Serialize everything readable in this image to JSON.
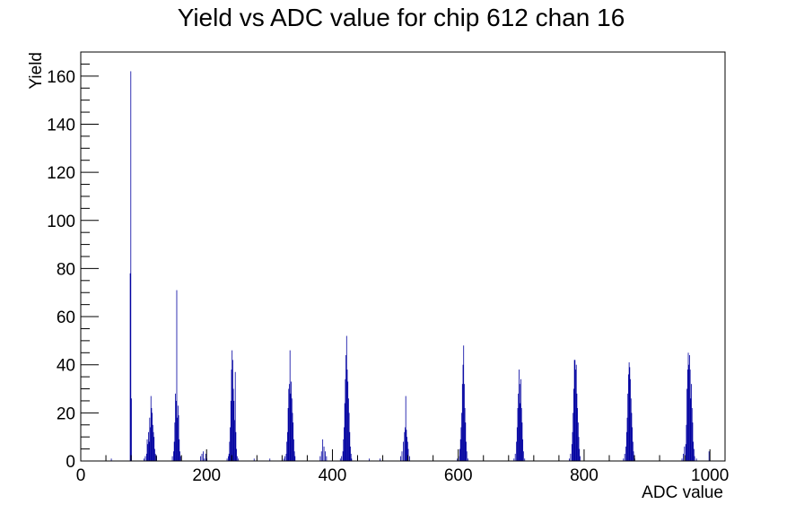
{
  "chart_data": {
    "type": "bar",
    "title": "Yield vs ADC value for chip 612 chan 16",
    "xlabel": "ADC value",
    "ylabel": "Yield",
    "xlim": [
      0,
      1024
    ],
    "ylim": [
      0,
      170
    ],
    "xticks": [
      0,
      200,
      400,
      600,
      800,
      1000
    ],
    "yticks": [
      0,
      20,
      40,
      60,
      80,
      100,
      120,
      140,
      160
    ],
    "grid": false,
    "color": "#0000a0",
    "bin_width": 1,
    "points": [
      [
        48,
        1
      ],
      [
        78,
        78
      ],
      [
        79,
        162
      ],
      [
        80,
        26
      ],
      [
        100,
        1
      ],
      [
        102,
        2
      ],
      [
        104,
        3
      ],
      [
        105,
        9
      ],
      [
        106,
        7
      ],
      [
        107,
        12
      ],
      [
        108,
        8
      ],
      [
        109,
        18
      ],
      [
        110,
        14
      ],
      [
        111,
        27
      ],
      [
        112,
        22
      ],
      [
        113,
        20
      ],
      [
        114,
        15
      ],
      [
        115,
        12
      ],
      [
        116,
        10
      ],
      [
        117,
        5
      ],
      [
        118,
        3
      ],
      [
        120,
        2
      ],
      [
        145,
        2
      ],
      [
        147,
        4
      ],
      [
        148,
        8
      ],
      [
        149,
        16
      ],
      [
        150,
        28
      ],
      [
        151,
        25
      ],
      [
        152,
        71
      ],
      [
        153,
        18
      ],
      [
        154,
        23
      ],
      [
        155,
        19
      ],
      [
        156,
        9
      ],
      [
        157,
        4
      ],
      [
        158,
        2
      ],
      [
        190,
        2
      ],
      [
        192,
        3
      ],
      [
        194,
        4
      ],
      [
        196,
        1
      ],
      [
        198,
        3
      ],
      [
        200,
        1
      ],
      [
        232,
        1
      ],
      [
        234,
        2
      ],
      [
        235,
        3
      ],
      [
        236,
        8
      ],
      [
        237,
        14
      ],
      [
        238,
        25
      ],
      [
        239,
        38
      ],
      [
        240,
        46
      ],
      [
        241,
        42
      ],
      [
        242,
        30
      ],
      [
        243,
        25
      ],
      [
        244,
        17
      ],
      [
        245,
        37
      ],
      [
        246,
        12
      ],
      [
        247,
        5
      ],
      [
        248,
        2
      ],
      [
        250,
        1
      ],
      [
        275,
        1
      ],
      [
        300,
        1
      ],
      [
        322,
        1
      ],
      [
        324,
        2
      ],
      [
        326,
        3
      ],
      [
        327,
        8
      ],
      [
        328,
        12
      ],
      [
        329,
        22
      ],
      [
        330,
        30
      ],
      [
        331,
        32
      ],
      [
        332,
        46
      ],
      [
        333,
        28
      ],
      [
        334,
        33
      ],
      [
        335,
        26
      ],
      [
        336,
        20
      ],
      [
        337,
        16
      ],
      [
        338,
        9
      ],
      [
        339,
        4
      ],
      [
        340,
        2
      ],
      [
        380,
        2
      ],
      [
        382,
        4
      ],
      [
        384,
        9
      ],
      [
        386,
        6
      ],
      [
        388,
        4
      ],
      [
        390,
        2
      ],
      [
        412,
        1
      ],
      [
        414,
        2
      ],
      [
        416,
        4
      ],
      [
        417,
        9
      ],
      [
        418,
        14
      ],
      [
        419,
        24
      ],
      [
        420,
        34
      ],
      [
        421,
        44
      ],
      [
        422,
        52
      ],
      [
        423,
        38
      ],
      [
        424,
        33
      ],
      [
        425,
        26
      ],
      [
        426,
        20
      ],
      [
        427,
        12
      ],
      [
        428,
        6
      ],
      [
        429,
        3
      ],
      [
        430,
        1
      ],
      [
        458,
        1
      ],
      [
        475,
        1
      ],
      [
        508,
        2
      ],
      [
        510,
        4
      ],
      [
        512,
        8
      ],
      [
        514,
        12
      ],
      [
        515,
        14
      ],
      [
        516,
        27
      ],
      [
        517,
        13
      ],
      [
        518,
        10
      ],
      [
        519,
        8
      ],
      [
        520,
        5
      ],
      [
        522,
        2
      ],
      [
        598,
        1
      ],
      [
        600,
        2
      ],
      [
        602,
        5
      ],
      [
        603,
        9
      ],
      [
        604,
        14
      ],
      [
        605,
        20
      ],
      [
        606,
        32
      ],
      [
        607,
        40
      ],
      [
        608,
        48
      ],
      [
        609,
        32
      ],
      [
        610,
        22
      ],
      [
        611,
        16
      ],
      [
        612,
        8
      ],
      [
        613,
        4
      ],
      [
        615,
        1
      ],
      [
        688,
        1
      ],
      [
        690,
        3
      ],
      [
        692,
        8
      ],
      [
        693,
        14
      ],
      [
        694,
        22
      ],
      [
        695,
        28
      ],
      [
        696,
        38
      ],
      [
        697,
        32
      ],
      [
        698,
        24
      ],
      [
        699,
        34
      ],
      [
        700,
        22
      ],
      [
        701,
        16
      ],
      [
        702,
        9
      ],
      [
        703,
        4
      ],
      [
        705,
        1
      ],
      [
        776,
        1
      ],
      [
        778,
        3
      ],
      [
        780,
        7
      ],
      [
        781,
        12
      ],
      [
        782,
        20
      ],
      [
        783,
        30
      ],
      [
        784,
        42
      ],
      [
        785,
        42
      ],
      [
        786,
        38
      ],
      [
        787,
        40
      ],
      [
        788,
        28
      ],
      [
        789,
        22
      ],
      [
        790,
        16
      ],
      [
        791,
        10
      ],
      [
        792,
        5
      ],
      [
        793,
        2
      ],
      [
        862,
        1
      ],
      [
        864,
        3
      ],
      [
        866,
        6
      ],
      [
        867,
        12
      ],
      [
        868,
        18
      ],
      [
        869,
        28
      ],
      [
        870,
        36
      ],
      [
        871,
        41
      ],
      [
        872,
        39
      ],
      [
        873,
        34
      ],
      [
        874,
        26
      ],
      [
        875,
        20
      ],
      [
        876,
        14
      ],
      [
        877,
        8
      ],
      [
        878,
        4
      ],
      [
        880,
        1
      ],
      [
        955,
        1
      ],
      [
        957,
        3
      ],
      [
        959,
        6
      ],
      [
        961,
        7
      ],
      [
        962,
        15
      ],
      [
        963,
        30
      ],
      [
        964,
        38
      ],
      [
        965,
        45
      ],
      [
        966,
        40
      ],
      [
        967,
        44
      ],
      [
        968,
        38
      ],
      [
        969,
        26
      ],
      [
        970,
        32
      ],
      [
        971,
        22
      ],
      [
        972,
        16
      ],
      [
        973,
        8
      ],
      [
        974,
        5
      ],
      [
        975,
        2
      ],
      [
        978,
        1
      ],
      [
        998,
        4
      ]
    ]
  }
}
